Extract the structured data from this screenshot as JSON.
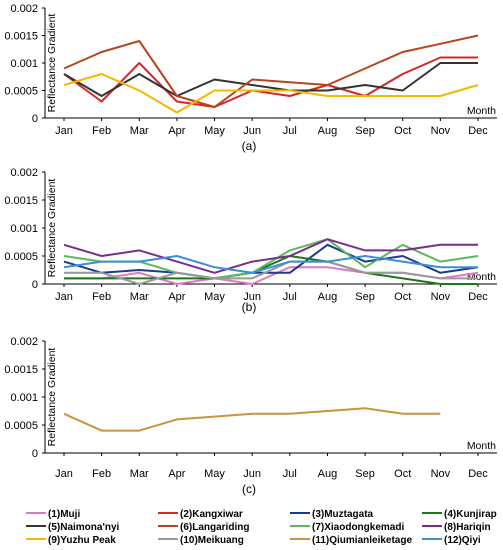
{
  "figure": {
    "months": [
      "Jan",
      "Feb",
      "Mar",
      "Apr",
      "May",
      "Jun",
      "Jul",
      "Aug",
      "Sep",
      "Oct",
      "Nov",
      "Dec"
    ],
    "y_ticks": [
      "0",
      "0.0005",
      "0.001",
      "0.0015",
      "0.002"
    ],
    "y_tick_values": [
      0,
      0.0005,
      0.001,
      0.0015,
      0.002
    ]
  },
  "chart_data": [
    {
      "type": "line",
      "panel_label": "(a)",
      "ylabel": "Reflectance Gradient",
      "xlabel": "Month",
      "ylim": [
        0,
        0.002
      ],
      "grid": false,
      "series": [
        {
          "name": "(2)Kangxiwar",
          "color": "#d62728",
          "values": [
            0.0008,
            0.0003,
            0.001,
            0.0003,
            0.0002,
            0.0005,
            0.0004,
            0.0006,
            0.0004,
            0.0008,
            0.0011,
            0.0011
          ]
        },
        {
          "name": "(5)Naimona'nyi",
          "color": "#333333",
          "values": [
            0.0008,
            0.0004,
            0.0008,
            0.0004,
            0.0007,
            0.0006,
            0.0005,
            0.0005,
            0.0006,
            0.0005,
            0.001,
            0.001
          ]
        },
        {
          "name": "(6)Langariding",
          "color": "#b5451b",
          "values": [
            0.0009,
            0.0012,
            0.0014,
            0.0004,
            0.0002,
            0.0007,
            0.00065,
            0.0006,
            0.0009,
            0.0012,
            0.00135,
            0.0015
          ]
        },
        {
          "name": "(9)Yuzhu Peak",
          "color": "#f5b800",
          "values": [
            0.0006,
            0.0008,
            0.0005,
            0.0001,
            0.0005,
            0.0005,
            0.0005,
            0.0004,
            0.0004,
            0.0004,
            0.0004,
            0.0006
          ]
        }
      ]
    },
    {
      "type": "line",
      "panel_label": "(b)",
      "ylabel": "Reflectance Gradient",
      "xlabel": "Month",
      "ylim": [
        0,
        0.002
      ],
      "grid": false,
      "series": [
        {
          "name": "(1)Muji",
          "color": "#e377c2",
          "values": [
            0.0001,
            0.0001,
            0.0002,
            0.0,
            0.0001,
            0.0,
            0.0003,
            0.0003,
            0.0002,
            0.0002,
            0.0001,
            0.0002
          ]
        },
        {
          "name": "(3)Muztagata",
          "color": "#1f3a8a",
          "values": [
            0.0004,
            0.0002,
            0.00025,
            0.0002,
            0.0001,
            0.0002,
            0.0002,
            0.0007,
            0.0004,
            0.0005,
            0.0002,
            0.0003
          ]
        },
        {
          "name": "(4)Kunjirap",
          "color": "#1a7a1a",
          "values": [
            0.0001,
            0.0001,
            0.0001,
            0.0001,
            0.0001,
            0.0002,
            0.0005,
            0.0004,
            0.0002,
            0.0001,
            0.0,
            0.0
          ]
        },
        {
          "name": "(7)Xiaodongkemadi",
          "color": "#5cb85c",
          "values": [
            0.0005,
            0.0004,
            0.0004,
            0.0002,
            0.0001,
            0.0002,
            0.0006,
            0.0008,
            0.0003,
            0.0007,
            0.0004,
            0.0005
          ]
        },
        {
          "name": "(8)Hariqin",
          "color": "#7b2d8e",
          "values": [
            0.0007,
            0.0005,
            0.0006,
            0.0004,
            0.0002,
            0.0004,
            0.0005,
            0.0008,
            0.0006,
            0.0006,
            0.0007,
            0.0007
          ]
        },
        {
          "name": "(10)Meikuang",
          "color": "#999999",
          "values": [
            0.0002,
            0.0002,
            0.0,
            0.0002,
            0.0001,
            0.0001,
            0.0004,
            0.0004,
            0.0002,
            0.0002,
            0.0001,
            0.0001
          ]
        },
        {
          "name": "(12)Qiyi",
          "color": "#3a8fd6",
          "values": [
            0.0003,
            0.0004,
            0.0004,
            0.0005,
            0.0003,
            0.0002,
            0.0004,
            0.0004,
            0.0005,
            0.0004,
            0.0003,
            0.0003
          ]
        }
      ]
    },
    {
      "type": "line",
      "panel_label": "(c)",
      "ylabel": "Reflectance Gradient",
      "xlabel": "Month",
      "ylim": [
        0,
        0.002
      ],
      "grid": false,
      "series": [
        {
          "name": "(11)Qiumianleiketage",
          "color": "#c8963c",
          "values": [
            0.0007,
            0.0004,
            0.0004,
            0.0006,
            0.00065,
            0.0007,
            0.0007,
            0.00075,
            0.0008,
            0.0007,
            0.0007,
            null
          ]
        }
      ]
    }
  ],
  "legend": [
    {
      "label": "(1)Muji",
      "color": "#e377c2"
    },
    {
      "label": "(2)Kangxiwar",
      "color": "#d62728"
    },
    {
      "label": "(3)Muztagata",
      "color": "#1f3a8a"
    },
    {
      "label": "(4)Kunjirap",
      "color": "#1a7a1a"
    },
    {
      "label": "(5)Naimona'nyi",
      "color": "#333333"
    },
    {
      "label": "(6)Langariding",
      "color": "#b5451b"
    },
    {
      "label": "(7)Xiaodongkemadi",
      "color": "#5cb85c"
    },
    {
      "label": "(8)Hariqin",
      "color": "#7b2d8e"
    },
    {
      "label": "(9)Yuzhu Peak",
      "color": "#f5b800"
    },
    {
      "label": "(10)Meikuang",
      "color": "#999999"
    },
    {
      "label": "(11)Qiumianleiketage",
      "color": "#c8963c"
    },
    {
      "label": "(12)Qiyi",
      "color": "#3a8fd6"
    }
  ]
}
